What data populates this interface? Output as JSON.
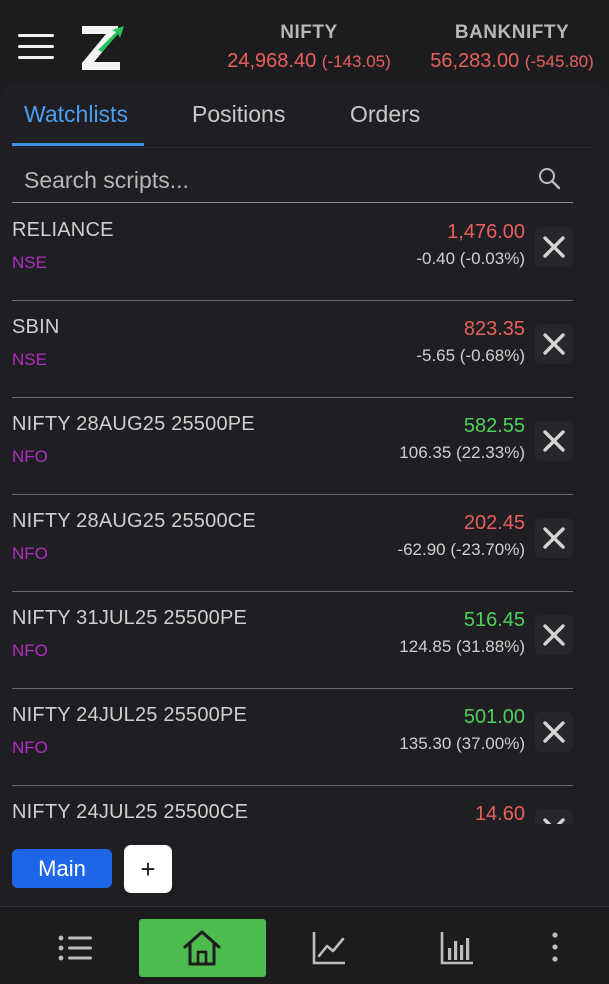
{
  "header": {
    "indices": [
      {
        "name": "NIFTY",
        "value": "24,968.40",
        "change": "(-143.05)"
      },
      {
        "name": "BANKNIFTY",
        "value": "56,283.00",
        "change": "(-545.80)"
      }
    ]
  },
  "tabs": [
    "Watchlists",
    "Positions",
    "Orders"
  ],
  "active_tab": "Watchlists",
  "search": {
    "placeholder": "Search scripts..."
  },
  "watchlist": [
    {
      "symbol": "RELIANCE",
      "exchange": "NSE",
      "ltp": "1,476.00",
      "change": "-0.40 (-0.03%)",
      "direction": "down"
    },
    {
      "symbol": "SBIN",
      "exchange": "NSE",
      "ltp": "823.35",
      "change": "-5.65 (-0.68%)",
      "direction": "down"
    },
    {
      "symbol": "NIFTY 28AUG25 25500PE",
      "exchange": "NFO",
      "ltp": "582.55",
      "change": "106.35 (22.33%)",
      "direction": "up"
    },
    {
      "symbol": "NIFTY 28AUG25 25500CE",
      "exchange": "NFO",
      "ltp": "202.45",
      "change": "-62.90 (-23.70%)",
      "direction": "down"
    },
    {
      "symbol": "NIFTY 31JUL25 25500PE",
      "exchange": "NFO",
      "ltp": "516.45",
      "change": "124.85 (31.88%)",
      "direction": "up"
    },
    {
      "symbol": "NIFTY 24JUL25 25500PE",
      "exchange": "NFO",
      "ltp": "501.00",
      "change": "135.30 (37.00%)",
      "direction": "up"
    },
    {
      "symbol": "NIFTY 24JUL25 25500CE",
      "exchange": "NFO",
      "ltp": "14.60",
      "change": "",
      "direction": "down"
    }
  ],
  "watchlist_bar": {
    "main_label": "Main",
    "add_label": "+"
  },
  "colors": {
    "up": "#4fd15a",
    "down": "#e8605c",
    "accent": "#4b9ef1",
    "exchange": "#b12ec0",
    "home_active": "#4dbb4d",
    "main_button": "#1e66e8"
  },
  "icons": {
    "menu": "hamburger-icon",
    "logo": "z-logo",
    "search": "search-icon",
    "remove": "close-icon",
    "nav": [
      "list-icon",
      "home-icon",
      "line-chart-icon",
      "bar-chart-icon",
      "more-vertical-icon"
    ]
  }
}
